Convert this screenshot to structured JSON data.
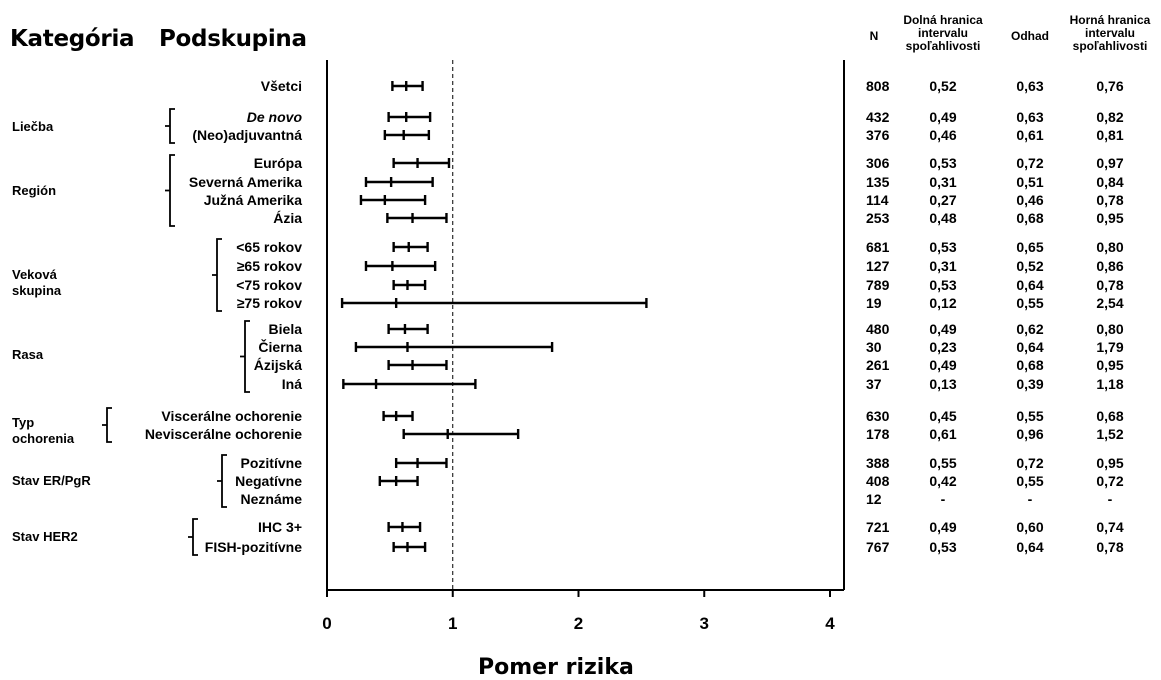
{
  "header": {
    "category": "Kategória",
    "subgroup": "Podskupina",
    "n": "N",
    "lower": [
      "Dolná hranica",
      "intervalu",
      "spoľahlivosti"
    ],
    "estimate": "Odhad",
    "upper": [
      "Horná hranica",
      "intervalu",
      "spoľahlivosti"
    ]
  },
  "chart_data": {
    "type": "forest",
    "xlabel": "Pomer rizika",
    "xlim": [
      0,
      4
    ],
    "xticks": [
      "0",
      "1",
      "2",
      "3",
      "4"
    ],
    "reference_line": 1,
    "categories": [
      {
        "label": "",
        "rows": [
          0
        ]
      },
      {
        "label": "Liečba",
        "rows": [
          1,
          2
        ]
      },
      {
        "label": "Región",
        "rows": [
          3,
          4,
          5,
          6
        ]
      },
      {
        "label": "Veková skupina",
        "rows": [
          7,
          8,
          9,
          10
        ]
      },
      {
        "label": "Rasa",
        "rows": [
          11,
          12,
          13,
          14
        ]
      },
      {
        "label": "Typ ochorenia",
        "rows": [
          15,
          16
        ]
      },
      {
        "label": "Stav ER/PgR",
        "rows": [
          17,
          18,
          19
        ]
      },
      {
        "label": "Stav HER2",
        "rows": [
          20,
          21
        ]
      }
    ],
    "rows": [
      {
        "subgroup": "Všetci",
        "n": "808",
        "lower": "0,52",
        "estimate": "0,63",
        "upper": "0,76",
        "lo": 0.52,
        "est": 0.63,
        "hi": 0.76
      },
      {
        "subgroup": "De novo",
        "italic": true,
        "n": "432",
        "lower": "0,49",
        "estimate": "0,63",
        "upper": "0,82",
        "lo": 0.49,
        "est": 0.63,
        "hi": 0.82
      },
      {
        "subgroup": "(Neo)adjuvantná",
        "n": "376",
        "lower": "0,46",
        "estimate": "0,61",
        "upper": "0,81",
        "lo": 0.46,
        "est": 0.61,
        "hi": 0.81
      },
      {
        "subgroup": "Európa",
        "n": "306",
        "lower": "0,53",
        "estimate": "0,72",
        "upper": "0,97",
        "lo": 0.53,
        "est": 0.72,
        "hi": 0.97
      },
      {
        "subgroup": "Severná Amerika",
        "n": "135",
        "lower": "0,31",
        "estimate": "0,51",
        "upper": "0,84",
        "lo": 0.31,
        "est": 0.51,
        "hi": 0.84
      },
      {
        "subgroup": "Južná Amerika",
        "n": "114",
        "lower": "0,27",
        "estimate": "0,46",
        "upper": "0,78",
        "lo": 0.27,
        "est": 0.46,
        "hi": 0.78
      },
      {
        "subgroup": "Ázia",
        "n": "253",
        "lower": "0,48",
        "estimate": "0,68",
        "upper": "0,95",
        "lo": 0.48,
        "est": 0.68,
        "hi": 0.95
      },
      {
        "subgroup": "<65 rokov",
        "n": "681",
        "lower": "0,53",
        "estimate": "0,65",
        "upper": "0,80",
        "lo": 0.53,
        "est": 0.65,
        "hi": 0.8
      },
      {
        "subgroup": "≥65 rokov",
        "n": "127",
        "lower": "0,31",
        "estimate": "0,52",
        "upper": "0,86",
        "lo": 0.31,
        "est": 0.52,
        "hi": 0.86
      },
      {
        "subgroup": "<75 rokov",
        "n": "789",
        "lower": "0,53",
        "estimate": "0,64",
        "upper": "0,78",
        "lo": 0.53,
        "est": 0.64,
        "hi": 0.78
      },
      {
        "subgroup": "≥75 rokov",
        "n": "19",
        "lower": "0,12",
        "estimate": "0,55",
        "upper": "2,54",
        "lo": 0.12,
        "est": 0.55,
        "hi": 2.54
      },
      {
        "subgroup": "Biela",
        "n": "480",
        "lower": "0,49",
        "estimate": "0,62",
        "upper": "0,80",
        "lo": 0.49,
        "est": 0.62,
        "hi": 0.8
      },
      {
        "subgroup": "Čierna",
        "n": "30",
        "lower": "0,23",
        "estimate": "0,64",
        "upper": "1,79",
        "lo": 0.23,
        "est": 0.64,
        "hi": 1.79
      },
      {
        "subgroup": "Ázijská",
        "n": "261",
        "lower": "0,49",
        "estimate": "0,68",
        "upper": "0,95",
        "lo": 0.49,
        "est": 0.68,
        "hi": 0.95
      },
      {
        "subgroup": "Iná",
        "n": "37",
        "lower": "0,13",
        "estimate": "0,39",
        "upper": "1,18",
        "lo": 0.13,
        "est": 0.39,
        "hi": 1.18
      },
      {
        "subgroup": "Viscerálne ochorenie",
        "n": "630",
        "lower": "0,45",
        "estimate": "0,55",
        "upper": "0,68",
        "lo": 0.45,
        "est": 0.55,
        "hi": 0.68
      },
      {
        "subgroup": "Neviscerálne ochorenie",
        "n": "178",
        "lower": "0,61",
        "estimate": "0,96",
        "upper": "1,52",
        "lo": 0.61,
        "est": 0.96,
        "hi": 1.52
      },
      {
        "subgroup": "Pozitívne",
        "n": "388",
        "lower": "0,55",
        "estimate": "0,72",
        "upper": "0,95",
        "lo": 0.55,
        "est": 0.72,
        "hi": 0.95
      },
      {
        "subgroup": "Negatívne",
        "n": "408",
        "lower": "0,42",
        "estimate": "0,55",
        "upper": "0,72",
        "lo": 0.42,
        "est": 0.55,
        "hi": 0.72
      },
      {
        "subgroup": "Neznáme",
        "n": "12",
        "lower": "-",
        "estimate": "-",
        "upper": "-",
        "lo": null,
        "est": null,
        "hi": null
      },
      {
        "subgroup": "IHC 3+",
        "n": "721",
        "lower": "0,49",
        "estimate": "0,60",
        "upper": "0,74",
        "lo": 0.49,
        "est": 0.6,
        "hi": 0.74
      },
      {
        "subgroup": "FISH-pozitívne",
        "n": "767",
        "lower": "0,53",
        "estimate": "0,64",
        "upper": "0,78",
        "lo": 0.53,
        "est": 0.64,
        "hi": 0.78
      }
    ]
  }
}
